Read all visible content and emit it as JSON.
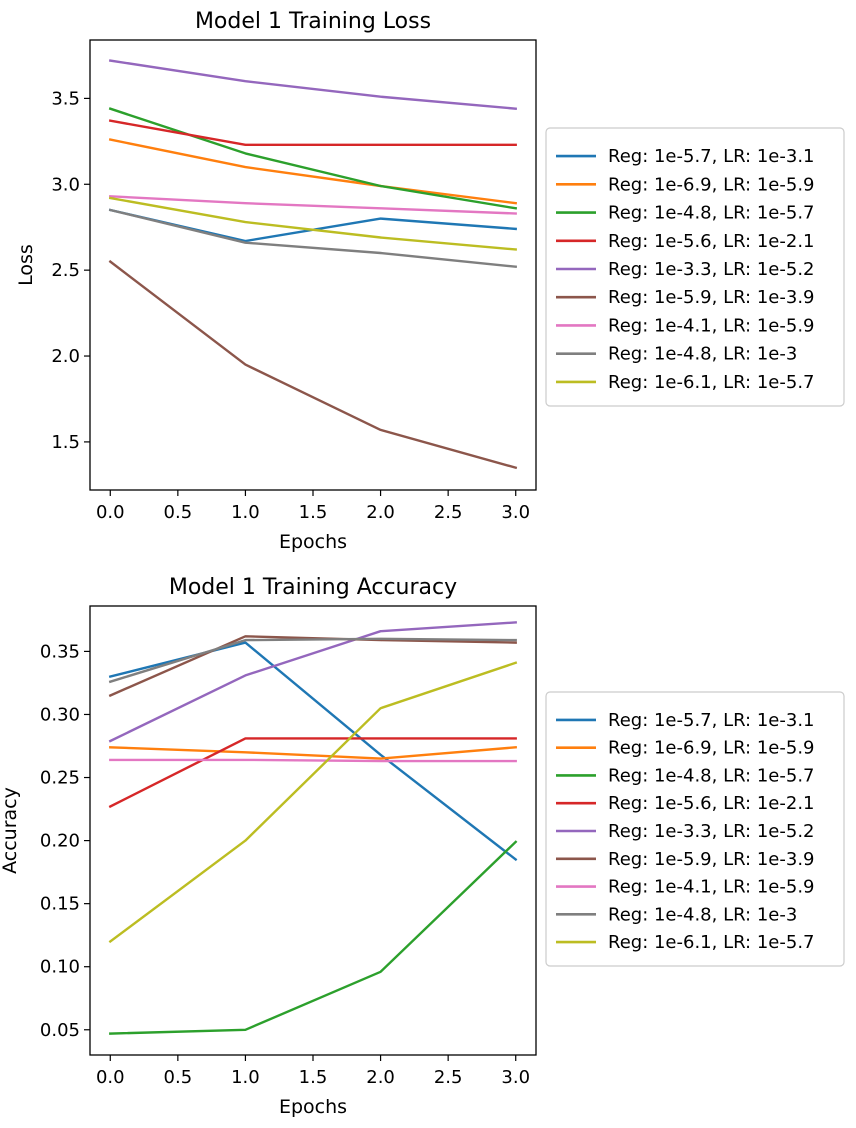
{
  "chart_data": [
    {
      "type": "line",
      "title": "Model 1 Training Loss",
      "xlabel": "Epochs",
      "ylabel": "Loss",
      "xlim": [
        -0.15,
        3.15
      ],
      "ylim": [
        1.22,
        3.84
      ],
      "xticks": [
        0.0,
        0.5,
        1.0,
        1.5,
        2.0,
        2.5,
        3.0
      ],
      "xtick_labels": [
        "0.0",
        "0.5",
        "1.0",
        "1.5",
        "2.0",
        "2.5",
        "3.0"
      ],
      "yticks": [
        1.5,
        2.0,
        2.5,
        3.0,
        3.5
      ],
      "ytick_labels": [
        "1.5",
        "2.0",
        "2.5",
        "3.0",
        "3.5"
      ],
      "grid": false,
      "legend_position": "outside-right",
      "x": [
        0,
        1,
        2,
        3
      ],
      "series": [
        {
          "name": "Reg: 1e-5.7, LR: 1e-3.1",
          "color": "#1f77b4",
          "values": [
            2.85,
            2.67,
            2.8,
            2.74
          ]
        },
        {
          "name": "Reg: 1e-6.9, LR: 1e-5.9",
          "color": "#ff7f0e",
          "values": [
            3.26,
            3.1,
            2.99,
            2.89
          ]
        },
        {
          "name": "Reg: 1e-4.8, LR: 1e-5.7",
          "color": "#2ca02c",
          "values": [
            3.44,
            3.18,
            2.99,
            2.86
          ]
        },
        {
          "name": "Reg: 1e-5.6, LR: 1e-2.1",
          "color": "#d62728",
          "values": [
            3.37,
            3.23,
            3.23,
            3.23
          ]
        },
        {
          "name": "Reg: 1e-3.3, LR: 1e-5.2",
          "color": "#9467bd",
          "values": [
            3.72,
            3.6,
            3.51,
            3.44
          ]
        },
        {
          "name": "Reg: 1e-5.9, LR: 1e-3.9",
          "color": "#8c564b",
          "values": [
            2.55,
            1.95,
            1.57,
            1.35
          ]
        },
        {
          "name": "Reg: 1e-4.1, LR: 1e-5.9",
          "color": "#e377c2",
          "values": [
            2.93,
            2.89,
            2.86,
            2.83
          ]
        },
        {
          "name": "Reg: 1e-4.8, LR: 1e-3",
          "color": "#7f7f7f",
          "values": [
            2.85,
            2.66,
            2.6,
            2.52
          ]
        },
        {
          "name": "Reg: 1e-6.1, LR: 1e-5.7",
          "color": "#bcbd22",
          "values": [
            2.92,
            2.78,
            2.69,
            2.62
          ]
        }
      ]
    },
    {
      "type": "line",
      "title": "Model 1 Training Accuracy",
      "xlabel": "Epochs",
      "ylabel": "Accuracy",
      "xlim": [
        -0.15,
        3.15
      ],
      "ylim": [
        0.03,
        0.386
      ],
      "xticks": [
        0.0,
        0.5,
        1.0,
        1.5,
        2.0,
        2.5,
        3.0
      ],
      "xtick_labels": [
        "0.0",
        "0.5",
        "1.0",
        "1.5",
        "2.0",
        "2.5",
        "3.0"
      ],
      "yticks": [
        0.05,
        0.1,
        0.15,
        0.2,
        0.25,
        0.3,
        0.35
      ],
      "ytick_labels": [
        "0.05",
        "0.10",
        "0.15",
        "0.20",
        "0.25",
        "0.30",
        "0.35"
      ],
      "grid": false,
      "legend_position": "outside-right",
      "x": [
        0,
        1,
        2,
        3
      ],
      "series": [
        {
          "name": "Reg: 1e-5.7, LR: 1e-3.1",
          "color": "#1f77b4",
          "values": [
            0.33,
            0.357,
            0.268,
            0.185
          ]
        },
        {
          "name": "Reg: 1e-6.9, LR: 1e-5.9",
          "color": "#ff7f0e",
          "values": [
            0.274,
            0.27,
            0.265,
            0.274
          ]
        },
        {
          "name": "Reg: 1e-4.8, LR: 1e-5.7",
          "color": "#2ca02c",
          "values": [
            0.047,
            0.05,
            0.096,
            0.199
          ]
        },
        {
          "name": "Reg: 1e-5.6, LR: 1e-2.1",
          "color": "#d62728",
          "values": [
            0.227,
            0.281,
            0.281,
            0.281
          ]
        },
        {
          "name": "Reg: 1e-3.3, LR: 1e-5.2",
          "color": "#9467bd",
          "values": [
            0.279,
            0.331,
            0.366,
            0.373
          ]
        },
        {
          "name": "Reg: 1e-5.9, LR: 1e-3.9",
          "color": "#8c564b",
          "values": [
            0.315,
            0.362,
            0.359,
            0.357
          ]
        },
        {
          "name": "Reg: 1e-4.1, LR: 1e-5.9",
          "color": "#e377c2",
          "values": [
            0.264,
            0.264,
            0.263,
            0.263
          ]
        },
        {
          "name": "Reg: 1e-4.8, LR: 1e-3",
          "color": "#7f7f7f",
          "values": [
            0.326,
            0.359,
            0.36,
            0.359
          ]
        },
        {
          "name": "Reg: 1e-6.1, LR: 1e-5.7",
          "color": "#bcbd22",
          "values": [
            0.12,
            0.2,
            0.305,
            0.341
          ]
        }
      ]
    }
  ]
}
